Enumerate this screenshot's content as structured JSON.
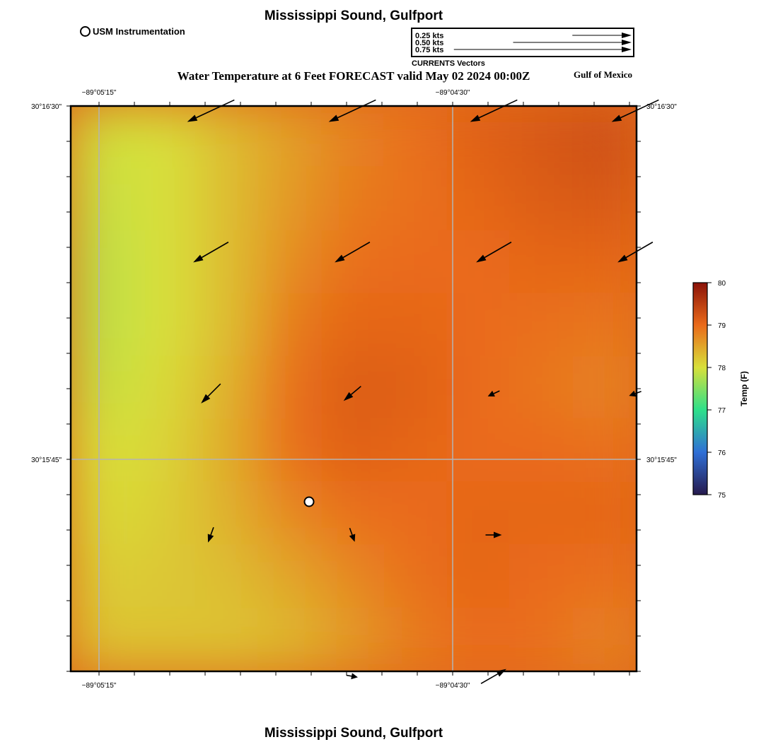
{
  "title": "Mississippi Sound, Gulfport",
  "footer_title": "Mississippi Sound, Gulfport",
  "subtitle": "Water Temperature at 6 Feet FORECAST valid May 02 2024 00:00Z",
  "region_label": "Gulf of Mexico",
  "station_legend": {
    "label": "USM Instrumentation",
    "icon": "open-circle-marker"
  },
  "vector_key": {
    "title": "CURRENTS Vectors",
    "entries": [
      {
        "label": "0.25 kts",
        "speed_kts": 0.25
      },
      {
        "label": "0.50 kts",
        "speed_kts": 0.5
      },
      {
        "label": "0.75 kts",
        "speed_kts": 0.75
      }
    ]
  },
  "axes": {
    "lon_ticks": [
      "−89°05'15\"",
      "−89°04'30\""
    ],
    "lat_ticks": [
      "30°16'30\"",
      "30°15'45\""
    ]
  },
  "colorbar": {
    "label": "Temp (F)",
    "ticks": [
      "75",
      "76",
      "77",
      "78",
      "79",
      "80"
    ],
    "min": 75,
    "max": 80,
    "colors": [
      "#261a4d",
      "#2f6fd6",
      "#2ee08a",
      "#d8e03a",
      "#ea6a1a",
      "#8a1208"
    ]
  },
  "temperature_field": {
    "grid_note": "sampled approx on 9x9 lattice",
    "cols": 9,
    "rows": 9,
    "values_F": [
      [
        77.95,
        78.0,
        78.3,
        78.55,
        78.8,
        78.95,
        79.1,
        79.2,
        79.3
      ],
      [
        77.9,
        78.0,
        78.3,
        78.6,
        78.85,
        78.95,
        79.05,
        79.15,
        79.2
      ],
      [
        77.85,
        78.0,
        78.3,
        78.7,
        78.95,
        79.0,
        79.0,
        79.05,
        79.05
      ],
      [
        77.85,
        78.0,
        78.3,
        78.85,
        79.05,
        79.05,
        79.0,
        78.95,
        78.9
      ],
      [
        77.9,
        78.05,
        78.4,
        78.95,
        79.15,
        79.1,
        79.0,
        78.9,
        78.8
      ],
      [
        78.0,
        78.1,
        78.45,
        78.95,
        79.1,
        79.05,
        79.0,
        79.0,
        78.95
      ],
      [
        78.05,
        78.15,
        78.4,
        78.75,
        78.95,
        79.0,
        79.05,
        79.05,
        79.05
      ],
      [
        78.15,
        78.2,
        78.3,
        78.5,
        78.75,
        78.95,
        79.05,
        79.0,
        78.95
      ],
      [
        78.25,
        78.25,
        78.25,
        78.35,
        78.6,
        78.85,
        79.0,
        78.95,
        78.8
      ]
    ]
  },
  "current_vectors": [
    {
      "row": 0,
      "col": 0,
      "dir_deg": 245,
      "speed_kts": 0.32
    },
    {
      "row": 0,
      "col": 1,
      "dir_deg": 245,
      "speed_kts": 0.32
    },
    {
      "row": 0,
      "col": 2,
      "dir_deg": 245,
      "speed_kts": 0.32
    },
    {
      "row": 0,
      "col": 3,
      "dir_deg": 245,
      "speed_kts": 0.32
    },
    {
      "row": 1,
      "col": 0,
      "dir_deg": 240,
      "speed_kts": 0.25
    },
    {
      "row": 1,
      "col": 1,
      "dir_deg": 240,
      "speed_kts": 0.25
    },
    {
      "row": 1,
      "col": 2,
      "dir_deg": 240,
      "speed_kts": 0.25
    },
    {
      "row": 1,
      "col": 3,
      "dir_deg": 240,
      "speed_kts": 0.25
    },
    {
      "row": 2,
      "col": 0,
      "dir_deg": 225,
      "speed_kts": 0.17
    },
    {
      "row": 2,
      "col": 1,
      "dir_deg": 230,
      "speed_kts": 0.14
    },
    {
      "row": 2,
      "col": 2,
      "dir_deg": 245,
      "speed_kts": 0.08
    },
    {
      "row": 2,
      "col": 3,
      "dir_deg": 250,
      "speed_kts": 0.08
    },
    {
      "row": 3,
      "col": 0,
      "dir_deg": 200,
      "speed_kts": 0.1
    },
    {
      "row": 3,
      "col": 1,
      "dir_deg": 160,
      "speed_kts": 0.09
    },
    {
      "row": 3,
      "col": 2,
      "dir_deg": 90,
      "speed_kts": 0.1
    },
    {
      "row": 4,
      "col": 1,
      "dir_deg": 100,
      "speed_kts": 0.07
    },
    {
      "row": 4,
      "col": 2,
      "dir_deg": 60,
      "speed_kts": 0.18
    }
  ],
  "station": {
    "name": "USM Instrumentation site"
  }
}
